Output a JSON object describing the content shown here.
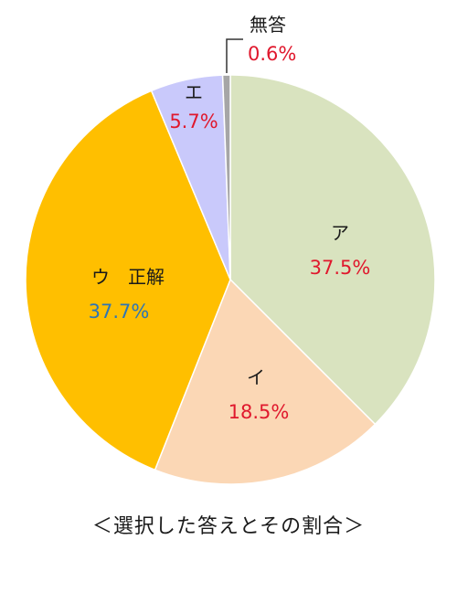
{
  "caption": "＜選択した答えとその割合＞",
  "chart_data": {
    "type": "pie",
    "start": "12 o'clock",
    "direction": "clockwise",
    "slices": [
      {
        "key": "a",
        "name": "ア",
        "value": 37.5,
        "label": "37.5%",
        "color": "#d9e3bf",
        "value_color": "#e0182d"
      },
      {
        "key": "i",
        "name": "イ",
        "value": 18.5,
        "label": "18.5%",
        "color": "#fbd7b5",
        "value_color": "#e0182d"
      },
      {
        "key": "u",
        "name": "ウ　正解",
        "value": 37.7,
        "label": "37.7%",
        "color": "#ffbf00",
        "value_color": "#2e75b6"
      },
      {
        "key": "e",
        "name": "エ",
        "value": 5.7,
        "label": "5.7%",
        "color": "#c9c9fb",
        "value_color": "#e0182d"
      },
      {
        "key": "none",
        "name": "無答",
        "value": 0.6,
        "label": "0.6%",
        "color": "#a6a6a6",
        "value_color": "#e0182d"
      }
    ]
  }
}
